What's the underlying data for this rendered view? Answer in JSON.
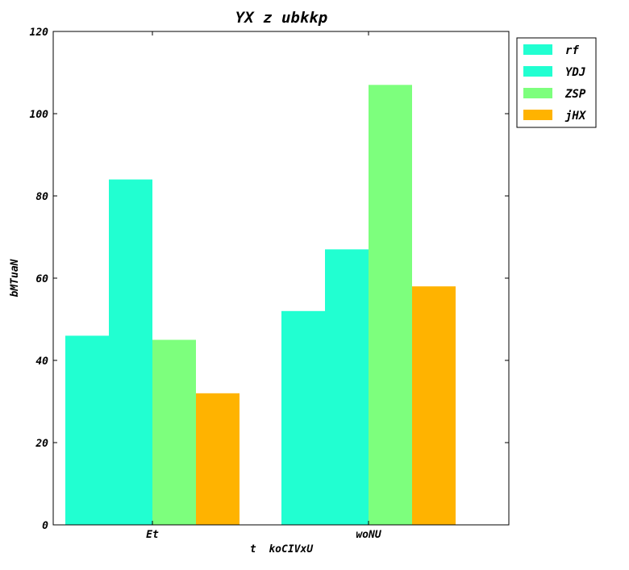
{
  "chart_data": {
    "type": "bar",
    "title": "YX z ubkkp",
    "xlabel": "t  koCIVxU",
    "ylabel": "bMTuaN",
    "categories": [
      "Et",
      "woNU"
    ],
    "series": [
      {
        "name": "rf",
        "color": "#21ffd1",
        "values": [
          46,
          52
        ]
      },
      {
        "name": "YDJ",
        "color": "#21ffd1",
        "values": [
          84,
          67
        ]
      },
      {
        "name": "ZSP",
        "color": "#7dff7d",
        "values": [
          45,
          107
        ]
      },
      {
        "name": "jHX",
        "color": "#ffb300",
        "values": [
          32,
          58
        ]
      }
    ],
    "ylim": [
      0,
      120
    ],
    "yticks": [
      0,
      20,
      40,
      60,
      80,
      100,
      120
    ],
    "grid": false,
    "legend_position": "outside-right-top"
  }
}
